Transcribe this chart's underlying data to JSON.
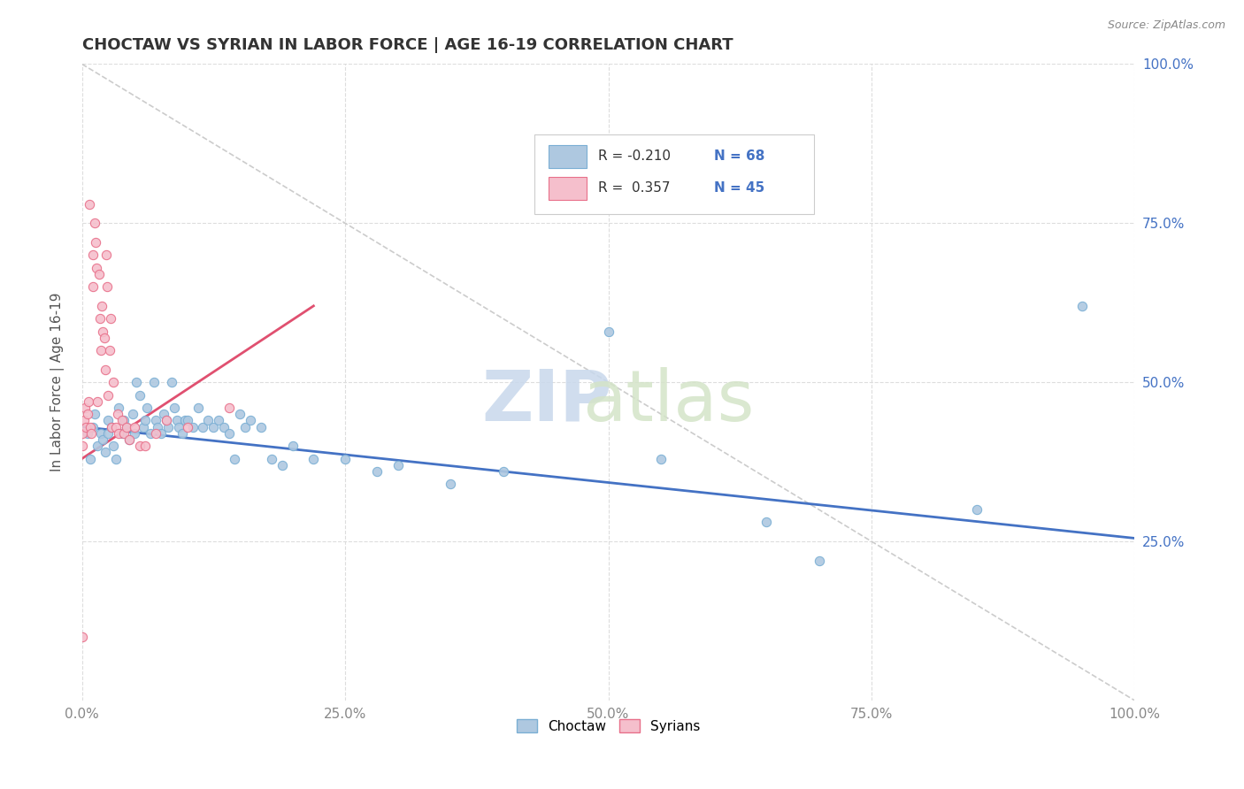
{
  "title": "CHOCTAW VS SYRIAN IN LABOR FORCE | AGE 16-19 CORRELATION CHART",
  "source_text": "Source: ZipAtlas.com",
  "ylabel": "In Labor Force | Age 16-19",
  "xlim": [
    0.0,
    1.0
  ],
  "ylim": [
    0.0,
    1.0
  ],
  "xticks": [
    0.0,
    0.25,
    0.5,
    0.75,
    1.0
  ],
  "yticks": [
    0.25,
    0.5,
    0.75,
    1.0
  ],
  "xticklabels": [
    "0.0%",
    "25.0%",
    "50.0%",
    "75.0%",
    "100.0%"
  ],
  "yticklabels_right": [
    "25.0%",
    "50.0%",
    "75.0%",
    "100.0%"
  ],
  "choctaw_color": "#aec8e0",
  "choctaw_edge_color": "#7bafd4",
  "syrian_color": "#f5bfcc",
  "syrian_edge_color": "#e8708a",
  "choctaw_line_color": "#4472c4",
  "syrian_line_color": "#e05070",
  "diag_color": "#cccccc",
  "R_choctaw": -0.21,
  "N_choctaw": 68,
  "R_syrian": 0.357,
  "N_syrian": 45,
  "watermark_zip": "ZIP",
  "watermark_atlas": "atlas",
  "choctaw_x": [
    0.005,
    0.008,
    0.01,
    0.012,
    0.015,
    0.018,
    0.02,
    0.022,
    0.025,
    0.025,
    0.028,
    0.03,
    0.032,
    0.035,
    0.038,
    0.04,
    0.042,
    0.045,
    0.048,
    0.05,
    0.052,
    0.055,
    0.058,
    0.06,
    0.062,
    0.065,
    0.068,
    0.07,
    0.072,
    0.075,
    0.078,
    0.08,
    0.082,
    0.085,
    0.088,
    0.09,
    0.092,
    0.095,
    0.098,
    0.1,
    0.105,
    0.11,
    0.115,
    0.12,
    0.125,
    0.13,
    0.135,
    0.14,
    0.145,
    0.15,
    0.155,
    0.16,
    0.17,
    0.18,
    0.19,
    0.2,
    0.22,
    0.25,
    0.28,
    0.3,
    0.35,
    0.4,
    0.5,
    0.55,
    0.65,
    0.7,
    0.85,
    0.95
  ],
  "choctaw_y": [
    0.42,
    0.38,
    0.43,
    0.45,
    0.4,
    0.42,
    0.41,
    0.39,
    0.44,
    0.42,
    0.43,
    0.4,
    0.38,
    0.46,
    0.42,
    0.44,
    0.43,
    0.41,
    0.45,
    0.42,
    0.5,
    0.48,
    0.43,
    0.44,
    0.46,
    0.42,
    0.5,
    0.44,
    0.43,
    0.42,
    0.45,
    0.44,
    0.43,
    0.5,
    0.46,
    0.44,
    0.43,
    0.42,
    0.44,
    0.44,
    0.43,
    0.46,
    0.43,
    0.44,
    0.43,
    0.44,
    0.43,
    0.42,
    0.38,
    0.45,
    0.43,
    0.44,
    0.43,
    0.38,
    0.37,
    0.4,
    0.38,
    0.38,
    0.36,
    0.37,
    0.34,
    0.36,
    0.58,
    0.38,
    0.28,
    0.22,
    0.3,
    0.62
  ],
  "syrian_x": [
    0.0,
    0.0,
    0.002,
    0.003,
    0.004,
    0.005,
    0.006,
    0.007,
    0.008,
    0.009,
    0.01,
    0.01,
    0.012,
    0.013,
    0.014,
    0.015,
    0.016,
    0.017,
    0.018,
    0.019,
    0.02,
    0.021,
    0.022,
    0.023,
    0.024,
    0.025,
    0.026,
    0.027,
    0.028,
    0.03,
    0.032,
    0.034,
    0.035,
    0.038,
    0.04,
    0.042,
    0.045,
    0.05,
    0.055,
    0.06,
    0.07,
    0.08,
    0.1,
    0.14,
    0.0
  ],
  "syrian_y": [
    0.42,
    0.4,
    0.44,
    0.46,
    0.43,
    0.45,
    0.47,
    0.78,
    0.43,
    0.42,
    0.65,
    0.7,
    0.75,
    0.72,
    0.68,
    0.47,
    0.67,
    0.6,
    0.55,
    0.62,
    0.58,
    0.57,
    0.52,
    0.7,
    0.65,
    0.48,
    0.55,
    0.6,
    0.43,
    0.5,
    0.43,
    0.45,
    0.42,
    0.44,
    0.42,
    0.43,
    0.41,
    0.43,
    0.4,
    0.4,
    0.42,
    0.44,
    0.43,
    0.46,
    0.1
  ],
  "choctaw_trend_x0": 0.0,
  "choctaw_trend_y0": 0.43,
  "choctaw_trend_x1": 1.0,
  "choctaw_trend_y1": 0.255,
  "syrian_trend_x0": 0.0,
  "syrian_trend_y0": 0.38,
  "syrian_trend_x1": 0.22,
  "syrian_trend_y1": 0.62
}
